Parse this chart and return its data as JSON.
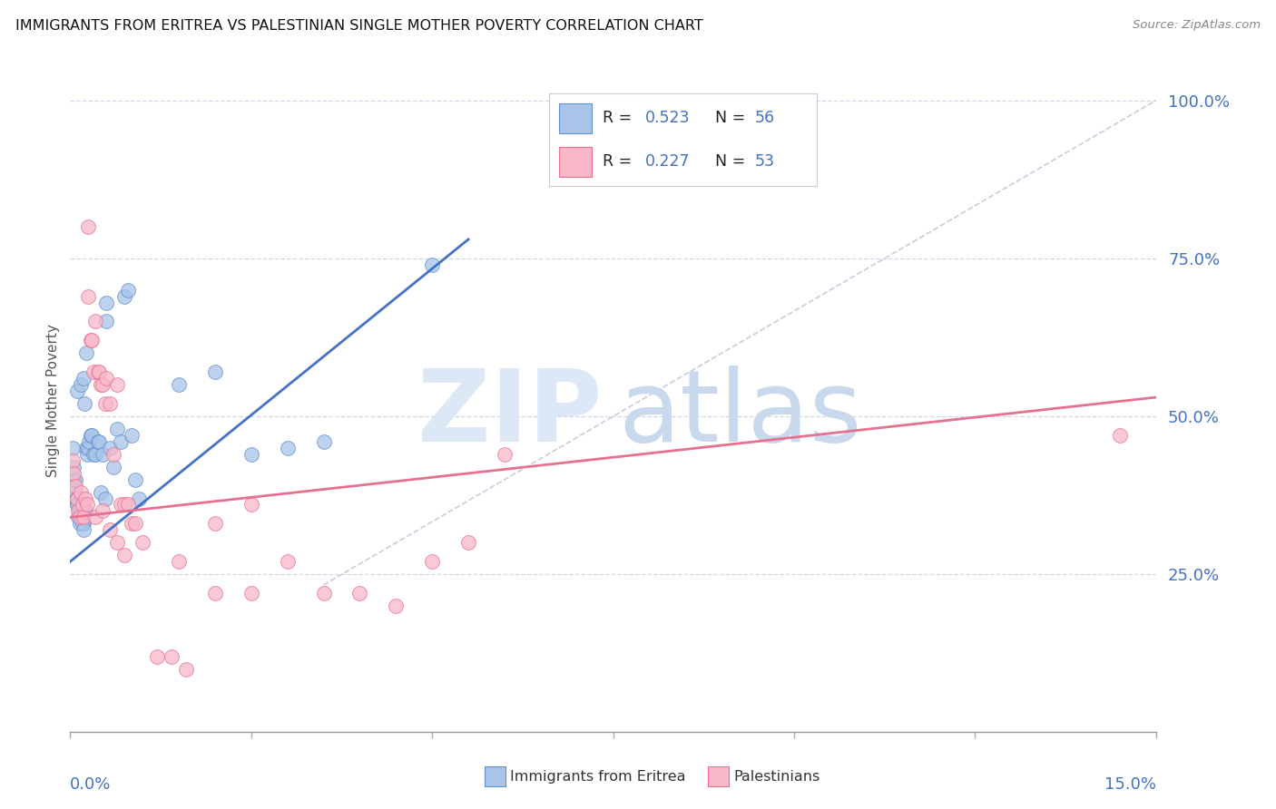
{
  "title": "IMMIGRANTS FROM ERITREA VS PALESTINIAN SINGLE MOTHER POVERTY CORRELATION CHART",
  "source": "Source: ZipAtlas.com",
  "ylabel": "Single Mother Poverty",
  "legend_label_blue": "Immigrants from Eritrea",
  "legend_label_pink": "Palestinians",
  "xlim": [
    0.0,
    15.0
  ],
  "ylim": [
    0.0,
    105.0
  ],
  "yticks": [
    0,
    25,
    50,
    75,
    100
  ],
  "ytick_labels": [
    "",
    "25.0%",
    "50.0%",
    "75.0%",
    "100.0%"
  ],
  "color_blue_fill": "#a8c4e8",
  "color_blue_edge": "#6090d0",
  "color_pink_fill": "#f8b8c8",
  "color_pink_edge": "#e87090",
  "color_blue_line": "#4472c4",
  "color_pink_line": "#e87090",
  "color_diag": "#c0c8d8",
  "background_color": "#ffffff",
  "title_color": "#111111",
  "axis_label_color": "#4472c4",
  "legend_text_color_label": "#222222",
  "legend_text_color_value": "#4472c4",
  "grid_color": "#d0d8e8",
  "blue_scatter_x": [
    0.05,
    0.07,
    0.08,
    0.1,
    0.1,
    0.12,
    0.13,
    0.14,
    0.15,
    0.16,
    0.17,
    0.18,
    0.19,
    0.2,
    0.2,
    0.22,
    0.22,
    0.24,
    0.25,
    0.26,
    0.28,
    0.3,
    0.32,
    0.35,
    0.38,
    0.4,
    0.42,
    0.45,
    0.48,
    0.5,
    0.5,
    0.55,
    0.6,
    0.65,
    0.7,
    0.75,
    0.8,
    0.85,
    0.9,
    0.95,
    0.03,
    0.05,
    0.07,
    0.09,
    0.11,
    0.13,
    0.15,
    0.17,
    0.19,
    0.21,
    1.5,
    2.0,
    2.5,
    3.0,
    3.5,
    5.0
  ],
  "blue_scatter_y": [
    40,
    38,
    37,
    54,
    36,
    35,
    34,
    36,
    55,
    35,
    34,
    56,
    33,
    52,
    35,
    60,
    45,
    44,
    45,
    46,
    47,
    47,
    44,
    44,
    46,
    46,
    38,
    44,
    37,
    68,
    65,
    45,
    42,
    48,
    46,
    69,
    70,
    47,
    40,
    37,
    45,
    42,
    40,
    36,
    34,
    33,
    35,
    33,
    32,
    35,
    55,
    57,
    44,
    45,
    46,
    74
  ],
  "pink_scatter_x": [
    0.03,
    0.05,
    0.07,
    0.09,
    0.11,
    0.13,
    0.15,
    0.17,
    0.19,
    0.21,
    0.23,
    0.25,
    0.28,
    0.3,
    0.32,
    0.35,
    0.38,
    0.4,
    0.42,
    0.45,
    0.48,
    0.5,
    0.55,
    0.6,
    0.65,
    0.7,
    0.75,
    0.8,
    0.85,
    0.9,
    1.0,
    1.5,
    2.0,
    2.5,
    3.0,
    3.5,
    4.0,
    4.5,
    5.0,
    5.5,
    6.0,
    14.5,
    0.25,
    0.35,
    0.45,
    0.55,
    0.65,
    0.75,
    1.2,
    1.4,
    1.6,
    2.0,
    2.5
  ],
  "pink_scatter_y": [
    43,
    41,
    39,
    37,
    35,
    34,
    38,
    36,
    34,
    37,
    36,
    69,
    62,
    62,
    57,
    65,
    57,
    57,
    55,
    55,
    52,
    56,
    52,
    44,
    55,
    36,
    36,
    36,
    33,
    33,
    30,
    27,
    33,
    36,
    27,
    22,
    22,
    20,
    27,
    30,
    44,
    47,
    80,
    34,
    35,
    32,
    30,
    28,
    12,
    12,
    10,
    22,
    22
  ],
  "blue_line_x": [
    0.0,
    5.5
  ],
  "blue_line_y": [
    27.0,
    78.0
  ],
  "pink_line_x": [
    0.0,
    15.0
  ],
  "pink_line_y": [
    34.0,
    53.0
  ],
  "diag_line_x": [
    3.5,
    15.0
  ],
  "diag_line_y": [
    23.3,
    100.0
  ]
}
